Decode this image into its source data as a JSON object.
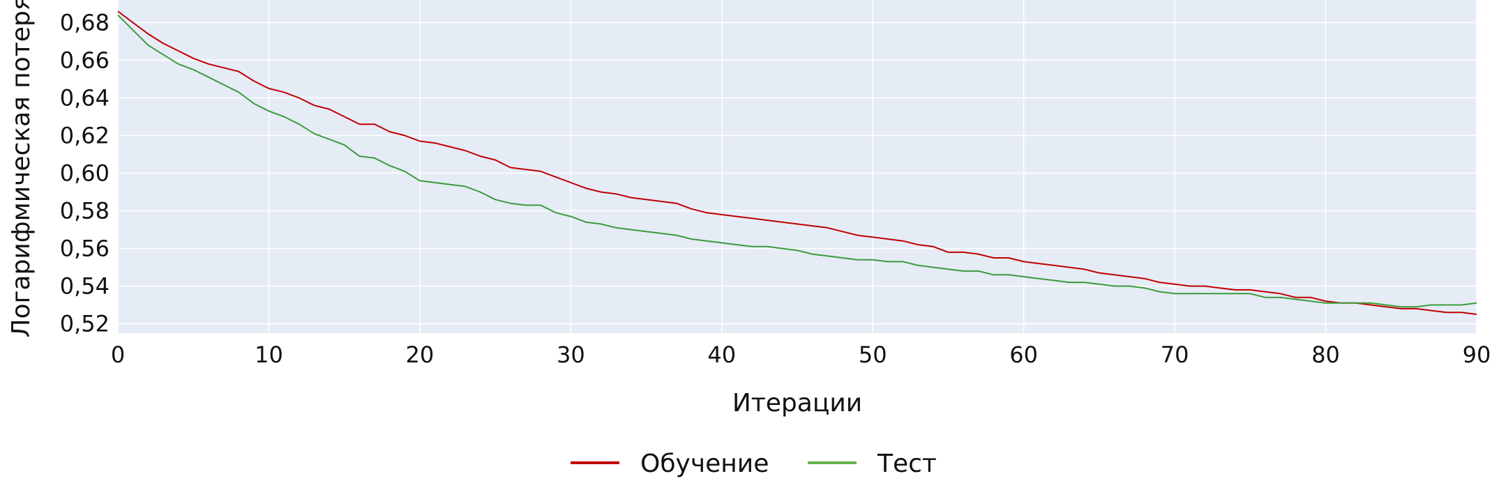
{
  "chart_data": {
    "type": "line",
    "xlabel": "Итерации",
    "ylabel": "Логарифмическая потеря",
    "xlim": [
      0,
      90
    ],
    "ylim": [
      0.515,
      0.692
    ],
    "x_ticks": [
      0,
      10,
      20,
      30,
      40,
      50,
      60,
      70,
      80,
      90
    ],
    "x_tick_labels": [
      "0",
      "10",
      "20",
      "30",
      "40",
      "50",
      "60",
      "70",
      "80",
      "90"
    ],
    "y_ticks": [
      0.52,
      0.54,
      0.56,
      0.58,
      0.6,
      0.62,
      0.64,
      0.66,
      0.68
    ],
    "y_tick_labels": [
      "0,52",
      "0,54",
      "0,56",
      "0,58",
      "0,60",
      "0,62",
      "0,64",
      "0,66",
      "0,68"
    ],
    "grid": true,
    "background_color": "#e5ecf6",
    "legend_position": "bottom-center",
    "series": [
      {
        "name": "Обучение",
        "color": "#c00000",
        "x": [
          0,
          1,
          2,
          3,
          4,
          5,
          6,
          7,
          8,
          9,
          10,
          11,
          12,
          13,
          14,
          15,
          16,
          17,
          18,
          19,
          20,
          21,
          22,
          23,
          24,
          25,
          26,
          27,
          28,
          29,
          30,
          31,
          32,
          33,
          34,
          35,
          36,
          37,
          38,
          39,
          40,
          41,
          42,
          43,
          44,
          45,
          46,
          47,
          48,
          49,
          50,
          51,
          52,
          53,
          54,
          55,
          56,
          57,
          58,
          59,
          60,
          61,
          62,
          63,
          64,
          65,
          66,
          67,
          68,
          69,
          70,
          71,
          72,
          73,
          74,
          75,
          76,
          77,
          78,
          79,
          80,
          81,
          82,
          83,
          84,
          85,
          86,
          87,
          88,
          89,
          90
        ],
        "values": [
          0.686,
          0.68,
          0.674,
          0.669,
          0.665,
          0.661,
          0.658,
          0.656,
          0.654,
          0.649,
          0.645,
          0.643,
          0.64,
          0.636,
          0.634,
          0.63,
          0.626,
          0.626,
          0.622,
          0.62,
          0.617,
          0.616,
          0.614,
          0.612,
          0.609,
          0.607,
          0.603,
          0.602,
          0.601,
          0.598,
          0.595,
          0.592,
          0.59,
          0.589,
          0.587,
          0.586,
          0.585,
          0.584,
          0.581,
          0.579,
          0.578,
          0.577,
          0.576,
          0.575,
          0.574,
          0.573,
          0.572,
          0.571,
          0.569,
          0.567,
          0.566,
          0.565,
          0.564,
          0.562,
          0.561,
          0.558,
          0.558,
          0.557,
          0.555,
          0.555,
          0.553,
          0.552,
          0.551,
          0.55,
          0.549,
          0.547,
          0.546,
          0.545,
          0.544,
          0.542,
          0.541,
          0.54,
          0.54,
          0.539,
          0.538,
          0.538,
          0.537,
          0.536,
          0.534,
          0.534,
          0.532,
          0.531,
          0.531,
          0.53,
          0.529,
          0.528,
          0.528,
          0.527,
          0.526,
          0.526,
          0.525
        ]
      },
      {
        "name": "Тест",
        "color": "#3a9c3a",
        "x": [
          0,
          1,
          2,
          3,
          4,
          5,
          6,
          7,
          8,
          9,
          10,
          11,
          12,
          13,
          14,
          15,
          16,
          17,
          18,
          19,
          20,
          21,
          22,
          23,
          24,
          25,
          26,
          27,
          28,
          29,
          30,
          31,
          32,
          33,
          34,
          35,
          36,
          37,
          38,
          39,
          40,
          41,
          42,
          43,
          44,
          45,
          46,
          47,
          48,
          49,
          50,
          51,
          52,
          53,
          54,
          55,
          56,
          57,
          58,
          59,
          60,
          61,
          62,
          63,
          64,
          65,
          66,
          67,
          68,
          69,
          70,
          71,
          72,
          73,
          74,
          75,
          76,
          77,
          78,
          79,
          80,
          81,
          82,
          83,
          84,
          85,
          86,
          87,
          88,
          89,
          90
        ],
        "values": [
          0.684,
          0.676,
          0.668,
          0.663,
          0.658,
          0.655,
          0.651,
          0.647,
          0.643,
          0.637,
          0.633,
          0.63,
          0.626,
          0.621,
          0.618,
          0.615,
          0.609,
          0.608,
          0.604,
          0.601,
          0.596,
          0.595,
          0.594,
          0.593,
          0.59,
          0.586,
          0.584,
          0.583,
          0.583,
          0.579,
          0.577,
          0.574,
          0.573,
          0.571,
          0.57,
          0.569,
          0.568,
          0.567,
          0.565,
          0.564,
          0.563,
          0.562,
          0.561,
          0.561,
          0.56,
          0.559,
          0.557,
          0.556,
          0.555,
          0.554,
          0.554,
          0.553,
          0.553,
          0.551,
          0.55,
          0.549,
          0.548,
          0.548,
          0.546,
          0.546,
          0.545,
          0.544,
          0.543,
          0.542,
          0.542,
          0.541,
          0.54,
          0.54,
          0.539,
          0.537,
          0.536,
          0.536,
          0.536,
          0.536,
          0.536,
          0.536,
          0.534,
          0.534,
          0.533,
          0.532,
          0.531,
          0.531,
          0.531,
          0.531,
          0.53,
          0.529,
          0.529,
          0.53,
          0.53,
          0.53,
          0.531
        ]
      }
    ]
  }
}
